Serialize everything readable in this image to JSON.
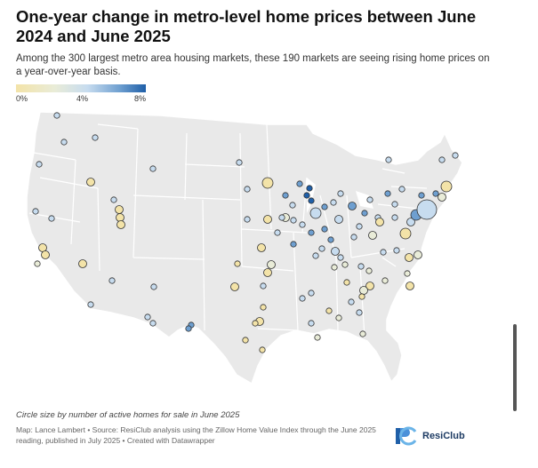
{
  "header": {
    "title": "One-year change in metro-level home prices between June 2024 and June 2025",
    "subtitle": "Among the 300 largest metro area housing markets, these 190 markets are seeing rising home prices on a year-over-year basis."
  },
  "legend": {
    "ticks": [
      "0%",
      "4%",
      "8%"
    ],
    "colors": [
      "#f3e3a8",
      "#e9ecd8",
      "#c7dcef",
      "#6e9fd0",
      "#1f5fa8"
    ]
  },
  "footer": {
    "size_note": "Circle size by number of active homes for sale in June 2025",
    "credit": "Map: Lance Lambert • Source: ResiClub analysis using the Zillow Home Value Index through the June 2025 reading, published in July 2025 • Created with Datawrapper"
  },
  "brand": {
    "name": "ResiClub",
    "logo_icon": "rc-logo-icon"
  },
  "map": {
    "land_color": "#e9e9e9",
    "border_color": "#ffffff",
    "circle_stroke": "#333333"
  }
}
